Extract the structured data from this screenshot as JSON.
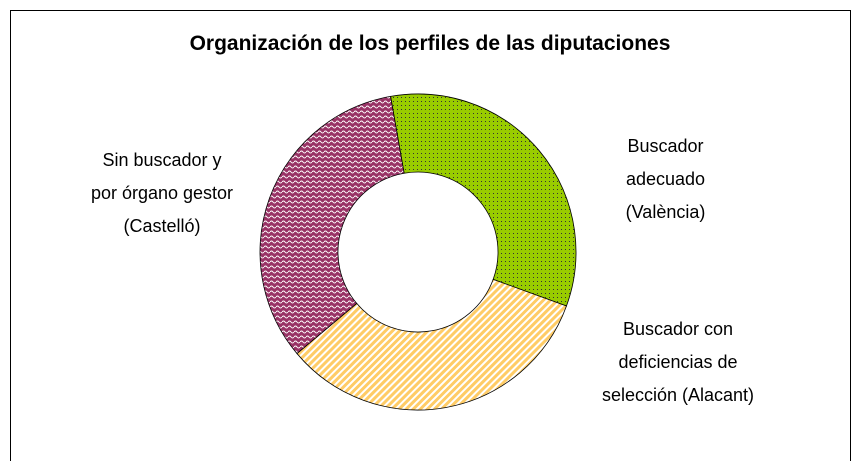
{
  "chart_data": {
    "type": "donut",
    "title": "Organización de los perfiles de las diputaciones",
    "categories": [
      "Buscador adecuado (València)",
      "Buscador con deficiencias de selección (Alacant)",
      "Sin buscador y por órgano gestor (Castelló)"
    ],
    "values": [
      33.3,
      33.3,
      33.3
    ],
    "colors": [
      "#99cc00",
      "#ffcc66",
      "#993366"
    ]
  }
}
